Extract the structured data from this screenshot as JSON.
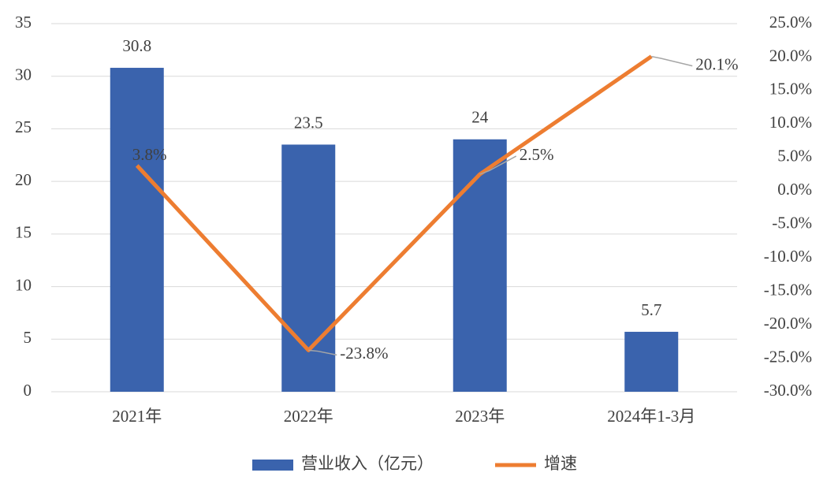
{
  "chart_data": {
    "type": "bar_line",
    "categories": [
      "2021年",
      "2022年",
      "2023年",
      "2024年1-3月"
    ],
    "series": [
      {
        "name": "营业收入（亿元）",
        "color": "#3a63ad",
        "type": "bar",
        "values": [
          30.8,
          23.5,
          24,
          5.7
        ]
      },
      {
        "name": "增速",
        "color": "#ed7d31",
        "type": "line",
        "axis": "y2",
        "values": [
          3.8,
          -23.8,
          2.5,
          20.1
        ],
        "value_labels": [
          "3.8%",
          "-23.8%",
          "2.5%",
          "20.1%"
        ]
      }
    ],
    "ylim": [
      0,
      35
    ],
    "yticks": [
      0,
      5,
      10,
      15,
      20,
      25,
      30,
      35
    ],
    "y2lim": [
      -30,
      25
    ],
    "y2ticks": [
      {
        "value": -30,
        "label": "-30.0%"
      },
      {
        "value": -25,
        "label": "-25.0%"
      },
      {
        "value": -20,
        "label": "-20.0%"
      },
      {
        "value": -15,
        "label": "-15.0%"
      },
      {
        "value": -10,
        "label": "-10.0%"
      },
      {
        "value": -5,
        "label": "-5.0%"
      },
      {
        "value": 0,
        "label": "0.0%"
      },
      {
        "value": 5,
        "label": "5.0%"
      },
      {
        "value": 10,
        "label": "10.0%"
      },
      {
        "value": 15,
        "label": "15.0%"
      },
      {
        "value": 20,
        "label": "20.0%"
      },
      {
        "value": 25,
        "label": "25.0%"
      }
    ],
    "grid": true,
    "legend": "bottom"
  }
}
